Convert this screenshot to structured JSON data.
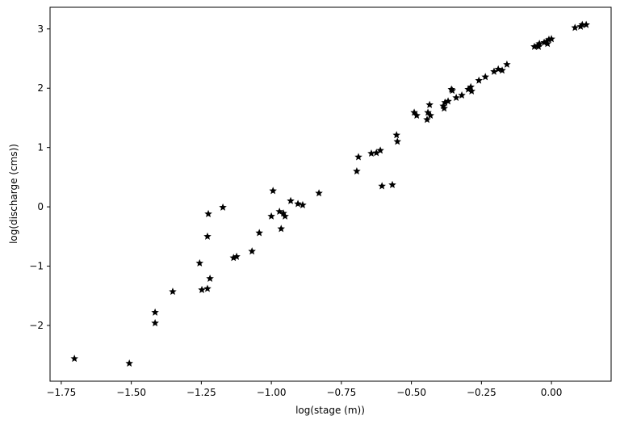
{
  "chart_data": {
    "type": "scatter",
    "x_label": "log(stage (m))",
    "y_label": "log(discharge (cms))",
    "color": "#000000",
    "marker": "star",
    "x": [
      -1.703,
      -1.507,
      -1.415,
      -1.415,
      -1.352,
      -1.256,
      -1.248,
      -1.228,
      -1.219,
      -1.228,
      -1.225,
      -1.173,
      -1.135,
      -1.124,
      -1.069,
      -1.043,
      -1.0,
      -0.994,
      -0.971,
      -0.965,
      -0.957,
      -0.951,
      -0.931,
      -0.905,
      -0.888,
      -0.83,
      -0.695,
      -0.689,
      -0.643,
      -0.625,
      -0.611,
      -0.605,
      -0.568,
      -0.553,
      -0.55,
      -0.49,
      -0.481,
      -0.444,
      -0.441,
      -0.435,
      -0.432,
      -0.386,
      -0.38,
      -0.383,
      -0.369,
      -0.357,
      -0.354,
      -0.34,
      -0.32,
      -0.297,
      -0.288,
      -0.285,
      -0.259,
      -0.236,
      -0.205,
      -0.19,
      -0.176,
      -0.159,
      -0.061,
      -0.049,
      -0.046,
      -0.043,
      -0.026,
      -0.017,
      -0.014,
      -0.009,
      0.0,
      0.084,
      0.104,
      0.11,
      0.124
    ],
    "values": [
      -2.56,
      -2.64,
      -1.78,
      -1.96,
      -1.43,
      -0.95,
      -1.4,
      -1.38,
      -1.21,
      -0.5,
      -0.12,
      -0.01,
      -0.86,
      -0.84,
      -0.75,
      -0.44,
      -0.16,
      0.27,
      -0.08,
      -0.37,
      -0.11,
      -0.16,
      0.1,
      0.05,
      0.03,
      0.23,
      0.6,
      0.84,
      0.9,
      0.91,
      0.95,
      0.35,
      0.37,
      1.21,
      1.1,
      1.59,
      1.54,
      1.47,
      1.59,
      1.72,
      1.54,
      1.7,
      1.76,
      1.66,
      1.78,
      1.98,
      1.96,
      1.84,
      1.88,
      1.98,
      2.02,
      1.95,
      2.13,
      2.19,
      2.28,
      2.32,
      2.3,
      2.4,
      2.7,
      2.72,
      2.7,
      2.75,
      2.77,
      2.79,
      2.75,
      2.82,
      2.83,
      3.02,
      3.04,
      3.07,
      3.07
    ],
    "xlim": [
      -1.79,
      0.213
    ],
    "ylim": [
      -2.94,
      3.365
    ],
    "xticks": [
      {
        "value": -1.75,
        "label": "−1.75"
      },
      {
        "value": -1.5,
        "label": "−1.50"
      },
      {
        "value": -1.25,
        "label": "−1.25"
      },
      {
        "value": -1.0,
        "label": "−1.00"
      },
      {
        "value": -0.75,
        "label": "−0.75"
      },
      {
        "value": -0.5,
        "label": "−0.50"
      },
      {
        "value": -0.25,
        "label": "−0.25"
      },
      {
        "value": 0,
        "label": "0.00"
      }
    ],
    "yticks": [
      {
        "value": -2,
        "label": "−2"
      },
      {
        "value": -1,
        "label": "−1"
      },
      0,
      1,
      2,
      3
    ]
  }
}
